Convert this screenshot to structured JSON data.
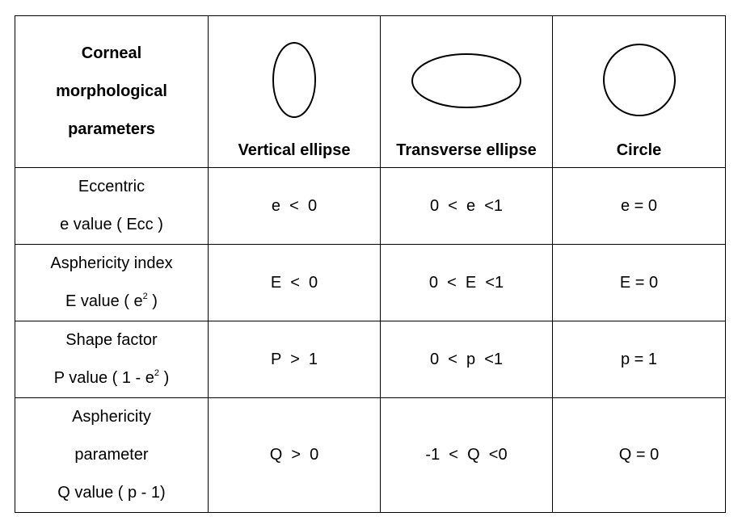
{
  "header": {
    "param_title": [
      "Corneal",
      "morphological",
      "parameters"
    ],
    "columns": [
      {
        "label": "Vertical ellipse",
        "icon": "vertical-ellipse-icon"
      },
      {
        "label": "Transverse ellipse",
        "icon": "transverse-ellipse-icon"
      },
      {
        "label": "Circle",
        "icon": "circle-icon"
      }
    ]
  },
  "rows": [
    {
      "name_lines": [
        "Eccentric",
        "e value ( Ecc )"
      ],
      "values": [
        "e  <  0",
        "0  <  e  <1",
        "e = 0"
      ]
    },
    {
      "name_lines": [
        "Asphericity index",
        "E value ( e"
      ],
      "name_sup": "2",
      "name_tail": " )",
      "values": [
        "E  <  0",
        "0  <  E  <1",
        "E = 0"
      ]
    },
    {
      "name_lines": [
        "Shape factor",
        "P value ( 1 - e"
      ],
      "name_sup": "2",
      "name_tail": " )",
      "values": [
        "P  >  1",
        "0  <  p  <1",
        "p = 1"
      ]
    },
    {
      "name_lines": [
        "Asphericity",
        "parameter",
        "Q value ( p - 1)"
      ],
      "values": [
        "Q  >  0",
        "-1  <  Q  <0",
        "Q = 0"
      ]
    }
  ]
}
